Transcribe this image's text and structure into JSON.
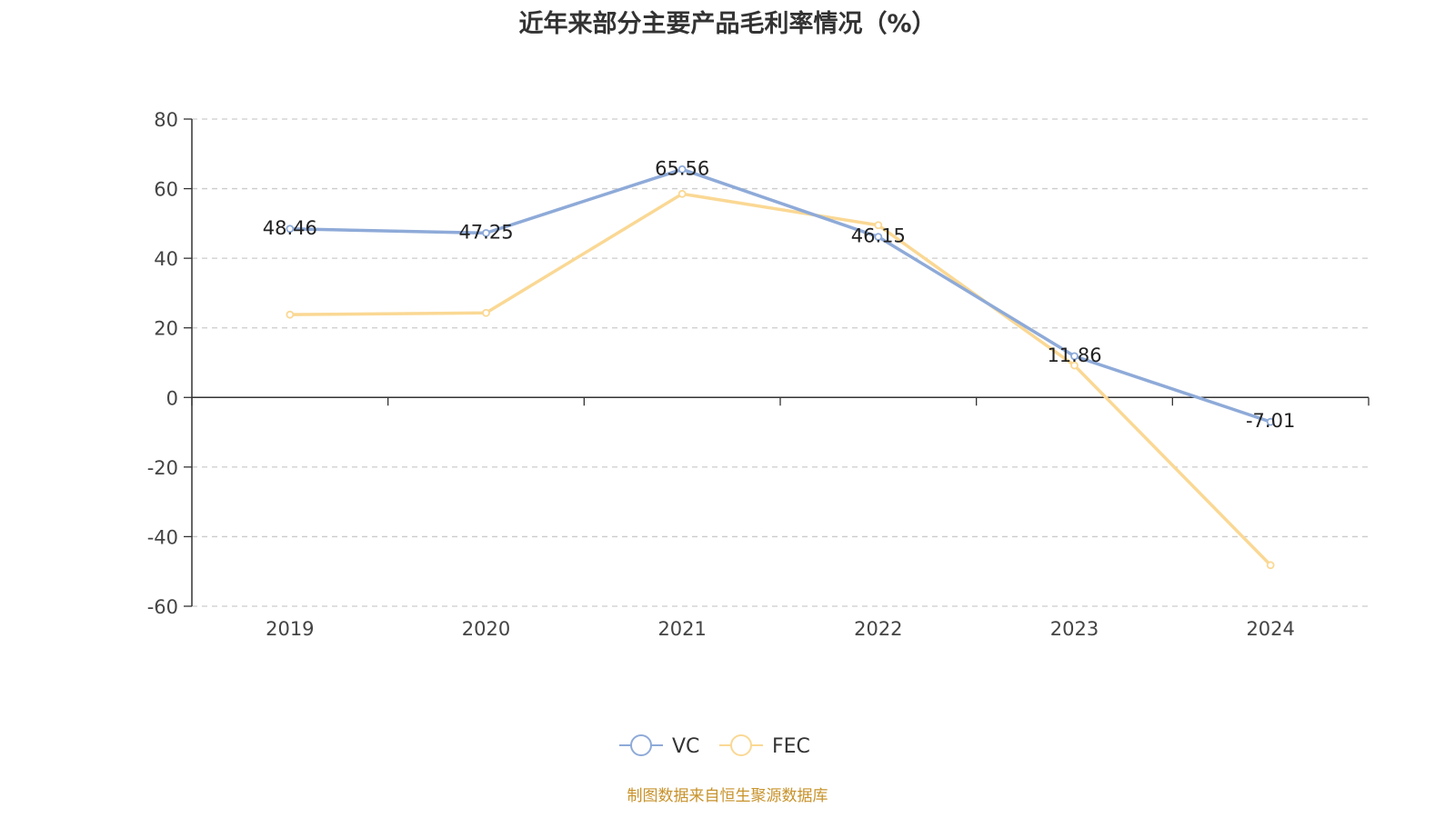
{
  "chart_data": {
    "type": "line",
    "title": "近年来部分主要产品毛利率情况（%）",
    "xlabel": "",
    "ylabel": "",
    "categories": [
      "2019",
      "2020",
      "2021",
      "2022",
      "2023",
      "2024"
    ],
    "ylim": [
      -60,
      80
    ],
    "yticks": [
      "-60",
      "-40",
      "-20",
      "0",
      "20",
      "40",
      "60",
      "80"
    ],
    "grid": true,
    "legend_position": "bottom-center",
    "series": [
      {
        "name": "VC",
        "color": "#8eaad8",
        "values": [
          48.46,
          47.25,
          65.56,
          46.15,
          11.86,
          -7.01
        ],
        "data_labels": [
          "48.46",
          "47.25",
          "65.56",
          "46.15",
          "11.86",
          "-7.01"
        ]
      },
      {
        "name": "FEC",
        "color": "#fad894",
        "values": [
          23.8,
          24.3,
          58.5,
          49.5,
          9.2,
          -48.2
        ]
      }
    ]
  },
  "source_note": "制图数据来自恒生聚源数据库"
}
